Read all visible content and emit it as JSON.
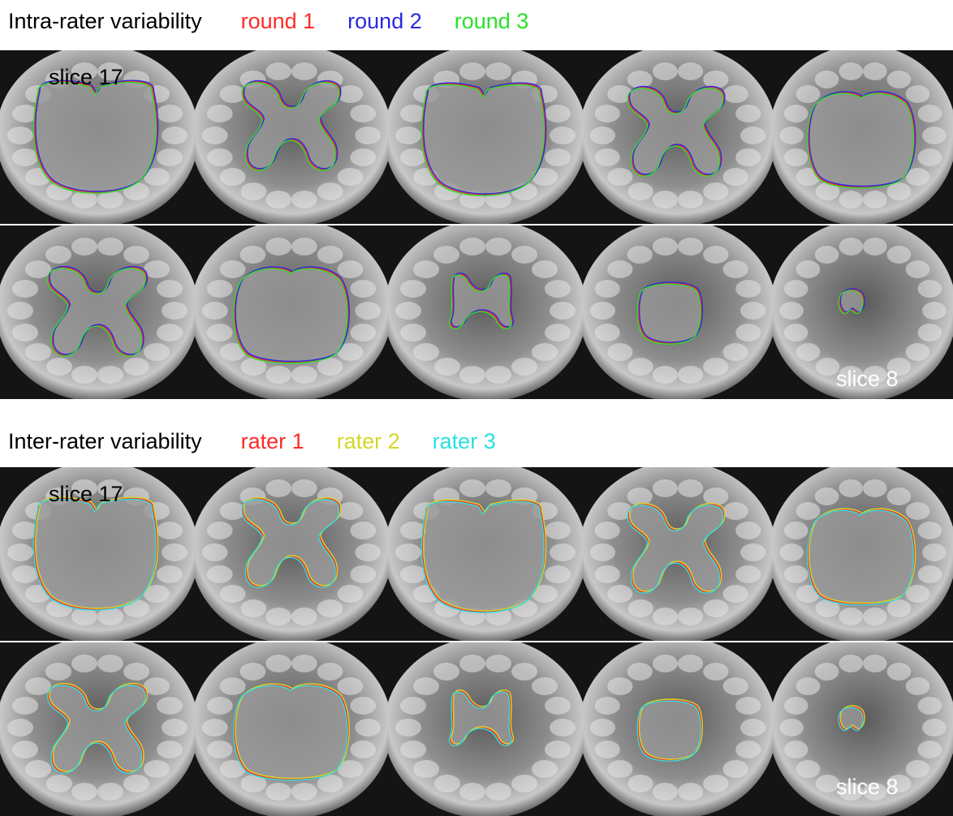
{
  "intra": {
    "title": "Intra-rater variability",
    "legend": [
      {
        "label": "round 1",
        "color": "#ff2a2a"
      },
      {
        "label": "round 2",
        "color": "#2a2ae0"
      },
      {
        "label": "round 3",
        "color": "#2ae02a"
      }
    ],
    "first_slice_label": "slice 17",
    "last_slice_label": "slice 8"
  },
  "inter": {
    "title": "Inter-rater variability",
    "legend": [
      {
        "label": "rater 1",
        "color": "#ff2a2a"
      },
      {
        "label": "rater 2",
        "color": "#d6d62a"
      },
      {
        "label": "rater 3",
        "color": "#2ae0e0"
      }
    ],
    "first_slice_label": "slice 17",
    "last_slice_label": "slice 8"
  },
  "panel_sequence": [
    "heart",
    "butterfly",
    "heart",
    "butterfly",
    "oval",
    "butterfly",
    "oval",
    "small-butterfly",
    "circle",
    "small-blob"
  ]
}
